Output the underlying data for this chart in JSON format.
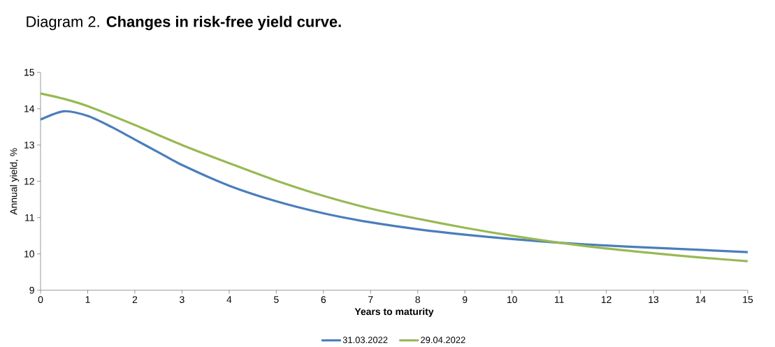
{
  "chart_data": {
    "type": "line",
    "title": "Diagram 2. **Changes in risk-free yield curve.**",
    "xlabel": "Years to maturity",
    "ylabel": "Annual yield, %",
    "series": [
      {
        "name": "31.03.2022",
        "color": "#4a7ebb",
        "x": [
          0,
          0.5,
          1,
          1.5,
          2,
          2.5,
          3,
          4,
          5,
          6,
          7,
          8,
          9,
          10,
          11,
          12,
          13,
          14,
          15
        ],
        "values": [
          13.7,
          13.93,
          13.8,
          13.5,
          13.15,
          12.8,
          12.45,
          11.88,
          11.45,
          11.12,
          10.87,
          10.68,
          10.53,
          10.41,
          10.31,
          10.23,
          10.17,
          10.11,
          10.05
        ]
      },
      {
        "name": "29.04.2022",
        "color": "#98b954",
        "x": [
          0,
          0.5,
          1,
          2,
          3,
          4,
          5,
          6,
          7,
          8,
          9,
          10,
          11,
          12,
          13,
          14,
          15
        ],
        "values": [
          14.42,
          14.27,
          14.07,
          13.55,
          13.0,
          12.5,
          12.02,
          11.6,
          11.25,
          10.97,
          10.72,
          10.5,
          10.31,
          10.15,
          10.02,
          9.9,
          9.8
        ]
      }
    ],
    "xlim": [
      0,
      15
    ],
    "ylim": [
      9,
      15
    ],
    "xticks": [
      0,
      1,
      2,
      3,
      4,
      5,
      6,
      7,
      8,
      9,
      10,
      11,
      12,
      13,
      14,
      15
    ],
    "yticks": [
      9,
      10,
      11,
      12,
      13,
      14,
      15
    ],
    "grid": false,
    "legend": "bottom",
    "marker": "none",
    "line_style": "solid"
  }
}
